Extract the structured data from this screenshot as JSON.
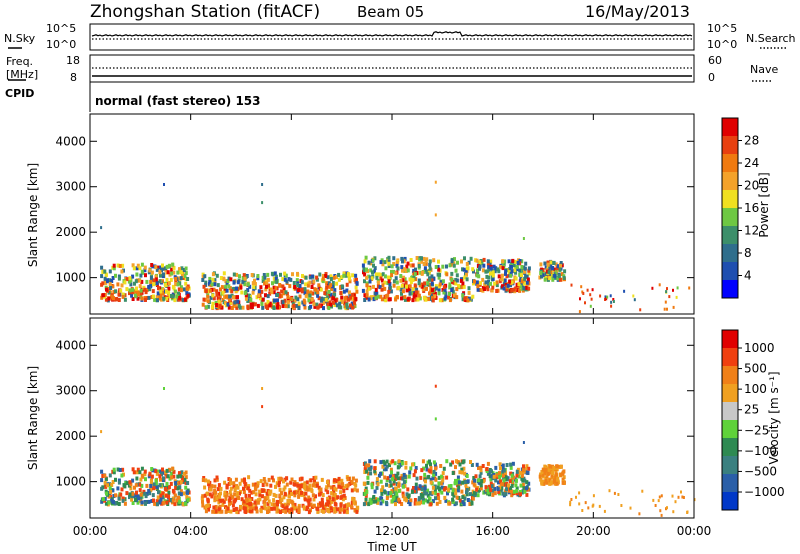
{
  "header": {
    "title": "Zhongshan Station (fitACF)",
    "beam": "Beam 05",
    "date": "16/May/2013"
  },
  "noise_panel": {
    "left_label": "N.Sky",
    "left_ticks": [
      "10^5",
      "10^0"
    ],
    "right_label": "N.Search",
    "right_ticks": [
      "10^5",
      "10^0"
    ]
  },
  "freq_panel": {
    "left_label_line1": "Freq.",
    "left_label_line2": "[MHz]",
    "left_ticks": [
      "18",
      "8"
    ],
    "right_label": "Nave",
    "right_ticks": [
      "60",
      "0"
    ],
    "cpid_label": "CPID",
    "cpid_text": "normal (fast stereo) 153"
  },
  "colors": {
    "power_scale": [
      "#0000ff",
      "#1f4fb0",
      "#2f6e8c",
      "#3c8f6a",
      "#6ec843",
      "#f0e020",
      "#f4a22a",
      "#f07a10",
      "#e84010",
      "#e00000"
    ],
    "velocity_scale": [
      "#0038c8",
      "#2a5fa8",
      "#3a8080",
      "#2e8a52",
      "#5fd23a",
      "#c8c8c8",
      "#f0a020",
      "#f08018",
      "#f04010",
      "#e00000"
    ]
  },
  "chart_data": [
    {
      "type": "heatmap",
      "name": "power",
      "ylabel": "Slant Range [km]",
      "xlabel": "Time UT",
      "x_ticks": [
        "00:00",
        "04:00",
        "08:00",
        "12:00",
        "16:00",
        "20:00",
        "00:00"
      ],
      "y_ticks": [
        "1000",
        "2000",
        "3000",
        "4000"
      ],
      "ylim": [
        200,
        4600
      ],
      "xlim_hours": [
        0,
        24
      ],
      "colorbar_label": "Power [dB]",
      "colorbar_ticks": [
        "4",
        "8",
        "12",
        "16",
        "20",
        "24",
        "28"
      ],
      "colorbar_range": [
        0,
        32
      ]
    },
    {
      "type": "heatmap",
      "name": "velocity",
      "ylabel": "Slant Range [km]",
      "xlabel": "Time UT",
      "x_ticks": [
        "00:00",
        "04:00",
        "08:00",
        "12:00",
        "16:00",
        "20:00",
        "00:00"
      ],
      "y_ticks": [
        "1000",
        "2000",
        "3000",
        "4000"
      ],
      "ylim": [
        200,
        4600
      ],
      "xlim_hours": [
        0,
        24
      ],
      "colorbar_label": "Velocity [m s⁻¹]",
      "colorbar_ticks": [
        "1000",
        "500",
        "100",
        "25",
        "−25",
        "−100",
        "−500",
        "−1000"
      ]
    }
  ]
}
